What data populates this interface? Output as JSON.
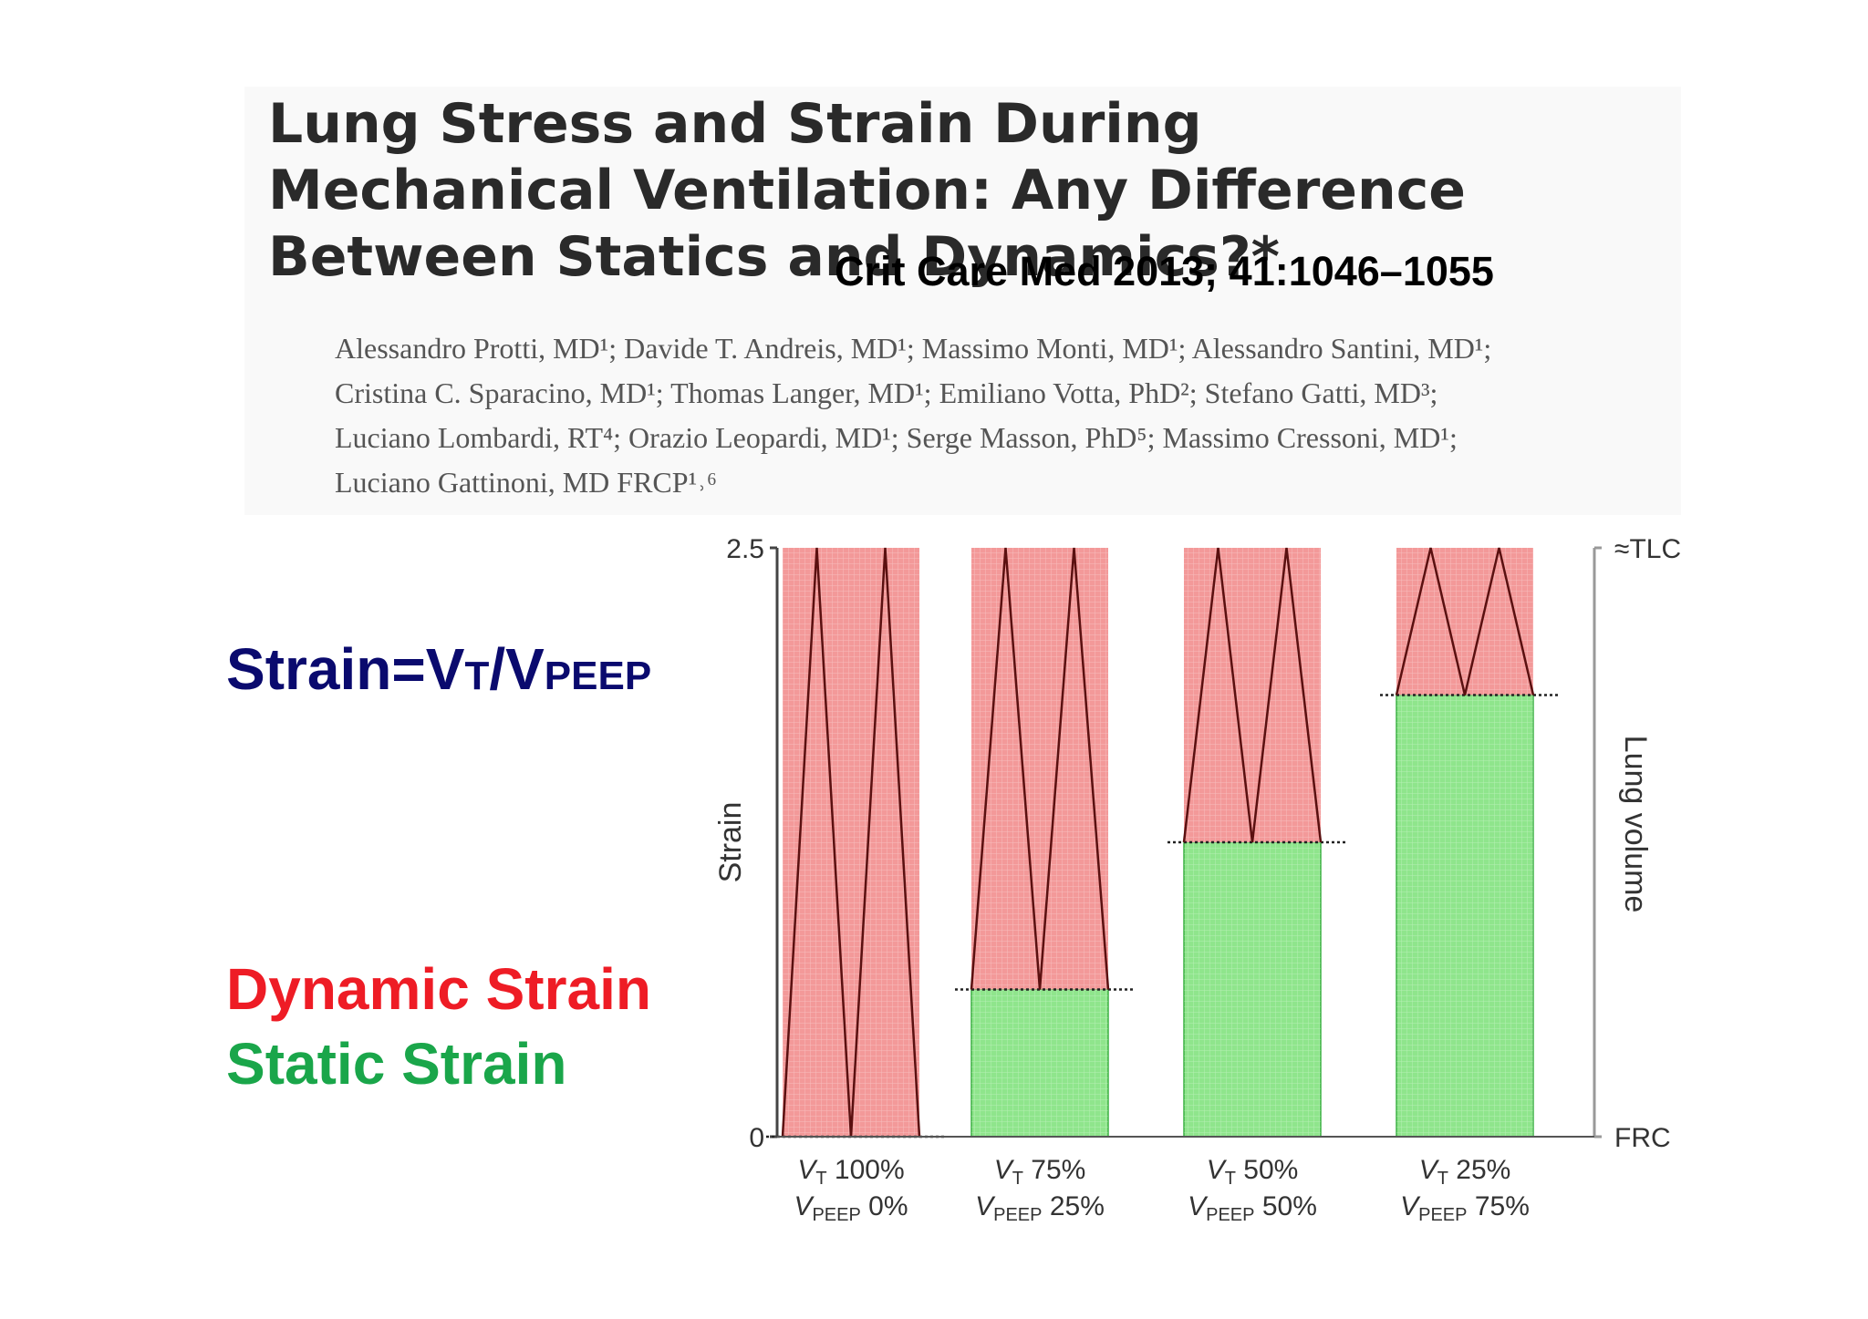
{
  "paper": {
    "title": "Lung Stress and Strain During Mechanical Ventilation: Any Difference Between Statics and Dynamics?*",
    "citation": "Crit Care Med 2013; 41:1046–1055",
    "author_lines": [
      "Alessandro Protti, MD¹; Davide T. Andreis, MD¹; Massimo Monti, MD¹; Alessandro Santini, MD¹;",
      "Cristina C. Sparacino, MD¹; Thomas Langer, MD¹; Emiliano Votta, PhD²; Stefano Gatti, MD³;",
      "Luciano Lombardi, RT⁴; Orazio Leopardi, MD¹; Serge Masson, PhD⁵; Massimo Cressoni, MD¹;",
      "Luciano Gattinoni, MD FRCP¹˒⁶"
    ]
  },
  "formula": {
    "lhs": "Strain=V",
    "sub1": "T",
    "mid": "/V",
    "sub2": "PEEP"
  },
  "legend": {
    "dynamic_label": "Dynamic Strain",
    "static_label": "Static Strain"
  },
  "colors": {
    "dynamic": "#f39999",
    "dynamic_text": "#ee1c25",
    "static": "#8fe58c",
    "static_text": "#1aa64a",
    "formula_text": "#0a0a6e"
  },
  "chart_data": {
    "type": "bar",
    "stacked": true,
    "ylabel": "Strain",
    "ylim": [
      0,
      2.5
    ],
    "y_ticks": [
      "0",
      "2.5"
    ],
    "right_axis": {
      "label": "Lung volume",
      "bottom": "FRC",
      "top": "≈TLC"
    },
    "categories": [
      {
        "vt": "100%",
        "vpeep": "0%"
      },
      {
        "vt": "75%",
        "vpeep": "25%"
      },
      {
        "vt": "50%",
        "vpeep": "50%"
      },
      {
        "vt": "25%",
        "vpeep": "75%"
      }
    ],
    "series": [
      {
        "name": "Static Strain",
        "values": [
          0,
          0.625,
          1.25,
          1.875
        ]
      },
      {
        "name": "Dynamic Strain",
        "values": [
          2.5,
          1.875,
          1.25,
          0.625
        ]
      }
    ]
  }
}
